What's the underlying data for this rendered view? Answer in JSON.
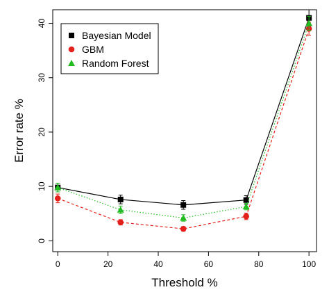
{
  "chart_data": {
    "type": "line",
    "xlabel": "Threshold %",
    "ylabel": "Error rate %",
    "xlim": [
      -2,
      103
    ],
    "ylim": [
      -2,
      42.5
    ],
    "xticks": [
      0,
      20,
      40,
      60,
      80,
      100
    ],
    "yticks": [
      0,
      10,
      20,
      30,
      40
    ],
    "legend_position": "top-left",
    "grid": false,
    "x": [
      0,
      25,
      50,
      75,
      100
    ],
    "series": [
      {
        "name": "Bayesian Model",
        "color": "#000000",
        "marker": "square",
        "line_style": "solid",
        "values": [
          9.8,
          7.6,
          6.6,
          7.5,
          41.0
        ],
        "error": [
          0.8,
          0.8,
          0.8,
          0.8,
          1.5
        ]
      },
      {
        "name": "GBM",
        "color": "#e3201c",
        "marker": "circle",
        "line_style": "dashed",
        "values": [
          7.8,
          3.4,
          2.2,
          4.5,
          39.0
        ],
        "error": [
          0.8,
          0.5,
          0.4,
          0.6,
          1.2
        ]
      },
      {
        "name": "Random Forest",
        "color": "#22bb22",
        "marker": "triangle",
        "line_style": "dotted",
        "values": [
          9.8,
          5.7,
          4.2,
          6.3,
          40.0
        ],
        "error": [
          0.8,
          0.7,
          0.6,
          0.6,
          1.3
        ]
      }
    ]
  }
}
